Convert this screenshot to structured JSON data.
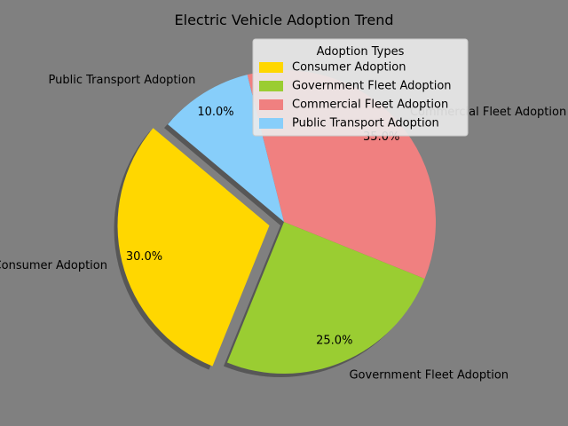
{
  "chart_data": {
    "type": "pie",
    "title": "Electric Vehicle Adoption Trend",
    "categories": [
      "Consumer Adoption",
      "Government Fleet Adoption",
      "Commercial Fleet Adoption",
      "Public Transport Adoption"
    ],
    "values": [
      30.0,
      25.0,
      35.0,
      10.0
    ],
    "percent_labels": [
      "30.0%",
      "25.0%",
      "35.0%",
      "10.0%"
    ],
    "colors": [
      "#ffd700",
      "#9acd32",
      "#f08080",
      "#87cefa"
    ],
    "exploded": [
      "Consumer Adoption"
    ],
    "shadow": true,
    "legend": {
      "title": "Adoption Types",
      "placement": "upper-right",
      "entries": [
        "Consumer Adoption",
        "Government Fleet Adoption",
        "Commercial Fleet Adoption",
        "Public Transport Adoption"
      ]
    },
    "background_color": "#808080"
  }
}
